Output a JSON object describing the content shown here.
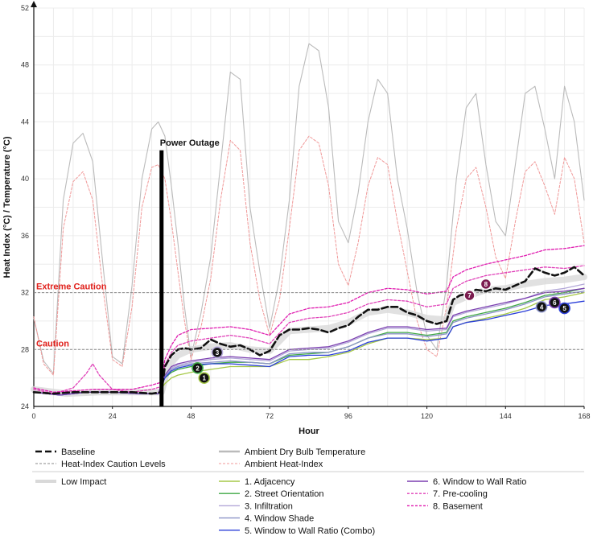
{
  "chart_data": {
    "type": "line",
    "title": "",
    "xlabel": "Hour",
    "ylabel": "Heat Index (°C) / Temperature (°C)",
    "xlim": [
      0,
      168
    ],
    "ylim": [
      24,
      52
    ],
    "xticks": [
      0,
      24,
      48,
      72,
      96,
      120,
      144,
      168
    ],
    "yticks": [
      24,
      28,
      32,
      36,
      40,
      44,
      48,
      52
    ],
    "grid": true,
    "legend": "bottom",
    "reference_lines": [
      {
        "name": "Extreme Caution",
        "y": 32
      },
      {
        "name": "Caution",
        "y": 28
      }
    ],
    "event": {
      "name": "Power Outage",
      "x": 39,
      "ytop": 42
    },
    "series": [
      {
        "name": "Ambient Dry Bulb Temperature",
        "color": "#bbbbbb",
        "dash": "",
        "x": [
          0,
          3,
          6,
          9,
          12,
          15,
          18,
          21,
          24,
          27,
          30,
          33,
          36,
          38,
          40,
          42,
          44,
          46,
          48,
          51,
          54,
          57,
          60,
          63,
          66,
          69,
          72,
          75,
          78,
          81,
          84,
          87,
          90,
          93,
          96,
          99,
          102,
          105,
          108,
          111,
          114,
          117,
          120,
          123,
          126,
          129,
          132,
          135,
          138,
          141,
          144,
          147,
          150,
          153,
          156,
          159,
          162,
          165,
          168
        ],
        "y": [
          30.2,
          27.2,
          26.3,
          38.5,
          42.5,
          43.2,
          41.2,
          34.2,
          27.5,
          27.0,
          32.5,
          40.0,
          43.5,
          44.0,
          43.0,
          39.5,
          35.5,
          31.0,
          27.5,
          30.5,
          34.5,
          41.0,
          47.5,
          47.0,
          38.0,
          33.5,
          29.5,
          33.0,
          38.5,
          46.5,
          49.5,
          49.0,
          45.0,
          37.0,
          35.5,
          39.0,
          44.0,
          47.0,
          46.0,
          40.0,
          36.5,
          32.0,
          29.0,
          28.0,
          32.5,
          40.0,
          45.0,
          46.0,
          41.0,
          37.0,
          36.0,
          41.0,
          46.0,
          46.5,
          43.5,
          40.0,
          46.5,
          44.0,
          38.5
        ]
      },
      {
        "name": "Ambient Heat-Index",
        "color": "#f09898",
        "dash": "3,2",
        "x": [
          0,
          3,
          6,
          9,
          12,
          15,
          18,
          21,
          24,
          27,
          30,
          33,
          36,
          38,
          40,
          42,
          44,
          46,
          48,
          51,
          54,
          57,
          60,
          63,
          66,
          69,
          72,
          75,
          78,
          81,
          84,
          87,
          90,
          93,
          96,
          99,
          102,
          105,
          108,
          111,
          114,
          117,
          120,
          123,
          126,
          129,
          132,
          135,
          138,
          141,
          144,
          147,
          150,
          153,
          156,
          159,
          162,
          165,
          168
        ],
        "y": [
          30.3,
          27.0,
          26.2,
          36.5,
          39.8,
          40.5,
          38.5,
          32.5,
          27.3,
          26.8,
          31.0,
          38.0,
          40.8,
          41.0,
          40.0,
          37.0,
          33.5,
          30.0,
          27.3,
          29.5,
          33.0,
          38.5,
          42.7,
          42.0,
          35.5,
          31.5,
          29.0,
          31.5,
          36.5,
          42.0,
          43.0,
          42.5,
          39.5,
          34.0,
          32.5,
          35.5,
          39.5,
          41.5,
          41.0,
          37.0,
          33.5,
          30.0,
          28.0,
          27.5,
          31.0,
          36.5,
          40.0,
          40.8,
          38.0,
          34.5,
          33.0,
          37.0,
          40.5,
          41.2,
          39.5,
          37.5,
          41.5,
          40.0,
          35.5
        ]
      },
      {
        "name": "Low Impact",
        "color": "#d9d9d9",
        "dash": "",
        "x": [
          0,
          10,
          20,
          30,
          39,
          41,
          44,
          48,
          54,
          60,
          66,
          72,
          78,
          84,
          90,
          96,
          102,
          108,
          114,
          120,
          126,
          128,
          132,
          138,
          144,
          150,
          156,
          162,
          168
        ],
        "y": [
          25.2,
          24.9,
          25.0,
          25.0,
          25.0,
          26.8,
          27.6,
          28.0,
          28.2,
          28.3,
          28.0,
          27.9,
          29.3,
          29.4,
          29.5,
          29.9,
          30.6,
          30.8,
          30.6,
          30.2,
          30.1,
          31.3,
          31.7,
          32.2,
          32.3,
          32.6,
          32.8,
          32.9,
          33.1
        ]
      },
      {
        "name": "Baseline",
        "color": "#111111",
        "dash": "8,4",
        "x": [
          0,
          6,
          12,
          18,
          24,
          30,
          36,
          39,
          40,
          42,
          44,
          46,
          48,
          51,
          54,
          57,
          60,
          63,
          66,
          69,
          72,
          75,
          78,
          81,
          84,
          87,
          90,
          93,
          96,
          99,
          102,
          105,
          108,
          111,
          114,
          117,
          120,
          123,
          126,
          128,
          130,
          132,
          135,
          138,
          141,
          144,
          147,
          150,
          153,
          156,
          159,
          162,
          165,
          168
        ],
        "y": [
          25.0,
          24.9,
          25.0,
          25.0,
          25.0,
          25.0,
          24.9,
          25.0,
          26.8,
          27.6,
          28.0,
          28.1,
          28.0,
          28.1,
          28.7,
          28.4,
          28.2,
          28.3,
          28.0,
          27.6,
          27.9,
          29.0,
          29.4,
          29.4,
          29.5,
          29.4,
          29.2,
          29.5,
          29.7,
          30.3,
          30.8,
          30.8,
          31.0,
          31.0,
          30.6,
          30.4,
          30.0,
          29.8,
          30.0,
          31.5,
          31.8,
          31.9,
          32.2,
          32.1,
          32.3,
          32.2,
          32.5,
          32.8,
          33.7,
          33.4,
          33.2,
          33.4,
          33.8,
          33.2
        ]
      },
      {
        "name": "1. Adjacency",
        "color": "#a6c948",
        "dash": "",
        "x": [
          0,
          8,
          16,
          24,
          32,
          38,
          40,
          42,
          44,
          48,
          54,
          60,
          66,
          72,
          78,
          84,
          90,
          96,
          102,
          108,
          114,
          120,
          126,
          128,
          132,
          138,
          144,
          150,
          156,
          162,
          168
        ],
        "y": [
          25.0,
          24.8,
          25.0,
          25.0,
          24.9,
          24.9,
          25.6,
          26.0,
          26.2,
          26.4,
          26.6,
          26.8,
          26.8,
          26.8,
          27.3,
          27.3,
          27.5,
          27.8,
          28.4,
          28.8,
          28.8,
          28.7,
          28.8,
          29.6,
          29.9,
          30.2,
          30.5,
          30.9,
          31.5,
          31.7,
          32.0
        ]
      },
      {
        "name": "2. Street Orientation",
        "color": "#3fa846",
        "dash": "",
        "x": [
          0,
          8,
          16,
          24,
          32,
          38,
          40,
          42,
          44,
          48,
          54,
          60,
          66,
          72,
          78,
          84,
          90,
          96,
          102,
          108,
          114,
          120,
          126,
          128,
          132,
          138,
          144,
          150,
          156,
          162,
          168
        ],
        "y": [
          25.0,
          24.8,
          25.0,
          25.0,
          24.9,
          24.9,
          26.0,
          26.4,
          26.6,
          26.8,
          27.0,
          27.1,
          27.1,
          27.0,
          27.6,
          27.7,
          27.8,
          28.2,
          28.8,
          29.2,
          29.2,
          29.0,
          29.2,
          30.0,
          30.3,
          30.6,
          30.9,
          31.3,
          31.8,
          32.0,
          32.3
        ]
      },
      {
        "name": "3. Infiltration",
        "color": "#b3a8d8",
        "dash": "",
        "x": [
          0,
          8,
          16,
          24,
          32,
          38,
          40,
          42,
          44,
          48,
          54,
          60,
          66,
          72,
          78,
          84,
          90,
          96,
          102,
          108,
          114,
          120,
          126,
          128,
          132,
          138,
          144,
          150,
          156,
          162,
          168
        ],
        "y": [
          25.0,
          24.8,
          25.0,
          25.0,
          24.9,
          24.9,
          26.2,
          26.7,
          26.9,
          27.1,
          27.3,
          27.4,
          27.3,
          27.2,
          27.9,
          28.0,
          28.1,
          28.5,
          29.1,
          29.5,
          29.5,
          29.3,
          29.4,
          30.3,
          30.6,
          30.9,
          31.2,
          31.6,
          32.1,
          32.3,
          32.6
        ]
      },
      {
        "name": "4. Window Shade",
        "color": "#8d94c8",
        "dash": "",
        "x": [
          0,
          8,
          16,
          24,
          32,
          38,
          40,
          42,
          44,
          48,
          54,
          60,
          66,
          72,
          78,
          84,
          90,
          96,
          102,
          108,
          114,
          120,
          126,
          128,
          132,
          138,
          144,
          150,
          156,
          162,
          168
        ],
        "y": [
          25.0,
          24.8,
          25.0,
          25.0,
          24.9,
          24.9,
          26.1,
          26.6,
          26.8,
          27.0,
          27.1,
          27.2,
          27.1,
          27.0,
          27.7,
          27.8,
          27.8,
          28.2,
          28.8,
          29.1,
          29.1,
          28.9,
          29.1,
          29.9,
          30.2,
          30.5,
          30.8,
          31.2,
          31.7,
          31.9,
          32.1
        ]
      },
      {
        "name": "5. Window to Wall Ratio (Combo)",
        "color": "#2b3fd9",
        "dash": "",
        "x": [
          0,
          8,
          16,
          24,
          32,
          38,
          40,
          42,
          44,
          48,
          54,
          60,
          66,
          72,
          78,
          84,
          90,
          96,
          102,
          108,
          114,
          120,
          126,
          128,
          132,
          138,
          144,
          150,
          156,
          162,
          168
        ],
        "y": [
          25.0,
          24.8,
          25.0,
          25.0,
          24.9,
          24.9,
          26.0,
          26.5,
          26.7,
          26.9,
          27.0,
          27.0,
          26.9,
          26.8,
          27.5,
          27.6,
          27.6,
          27.9,
          28.5,
          28.8,
          28.8,
          28.6,
          28.8,
          29.6,
          29.9,
          30.1,
          30.4,
          30.7,
          31.1,
          31.2,
          31.4
        ]
      },
      {
        "name": "6. Window to Wall Ratio",
        "color": "#7b3fb0",
        "dash": "",
        "x": [
          0,
          8,
          16,
          24,
          32,
          38,
          40,
          42,
          44,
          48,
          54,
          60,
          66,
          72,
          78,
          84,
          90,
          96,
          102,
          108,
          114,
          120,
          126,
          128,
          132,
          138,
          144,
          150,
          156,
          162,
          168
        ],
        "y": [
          25.0,
          24.8,
          25.0,
          25.0,
          24.9,
          24.9,
          26.2,
          26.8,
          27.0,
          27.2,
          27.4,
          27.5,
          27.4,
          27.3,
          28.0,
          28.1,
          28.2,
          28.6,
          29.2,
          29.6,
          29.6,
          29.4,
          29.5,
          30.4,
          30.7,
          31.0,
          31.3,
          31.6,
          32.0,
          32.1,
          32.3
        ]
      },
      {
        "name": "7. Pre-cooling",
        "color": "#e040b8",
        "dash": "3,2",
        "x": [
          0,
          6,
          12,
          16,
          18,
          20,
          24,
          30,
          36,
          39,
          40,
          42,
          44,
          48,
          54,
          60,
          66,
          72,
          78,
          84,
          90,
          96,
          102,
          108,
          114,
          120,
          126,
          128,
          132,
          138,
          144,
          150,
          156,
          162,
          168
        ],
        "y": [
          25.2,
          24.9,
          25.3,
          26.3,
          27.0,
          26.2,
          25.2,
          25.0,
          25.2,
          25.4,
          26.9,
          27.8,
          28.3,
          28.6,
          28.8,
          29.0,
          28.8,
          28.4,
          29.9,
          30.2,
          30.3,
          30.6,
          31.2,
          31.5,
          31.4,
          31.0,
          31.2,
          32.3,
          32.8,
          33.2,
          33.4,
          33.6,
          33.8,
          33.7,
          33.9
        ]
      },
      {
        "name": "8. Basement",
        "color": "#e01cb0",
        "dash": "3,2",
        "x": [
          0,
          6,
          12,
          18,
          24,
          30,
          36,
          39,
          40,
          42,
          44,
          48,
          54,
          60,
          66,
          72,
          78,
          84,
          90,
          96,
          102,
          108,
          114,
          120,
          126,
          128,
          132,
          138,
          144,
          150,
          156,
          162,
          168
        ],
        "y": [
          25.3,
          25.0,
          25.1,
          25.2,
          25.2,
          25.2,
          25.5,
          25.7,
          27.3,
          28.3,
          29.0,
          29.4,
          29.5,
          29.6,
          29.4,
          29.0,
          30.5,
          30.9,
          31.0,
          31.3,
          32.0,
          32.3,
          32.2,
          31.9,
          32.1,
          33.1,
          33.6,
          34.0,
          34.3,
          34.6,
          35.0,
          35.1,
          35.3
        ]
      }
    ],
    "markers": [
      {
        "label": "1",
        "x": 52,
        "y": 26.0,
        "fill": "#111111",
        "ring": "#a6c948"
      },
      {
        "label": "2",
        "x": 50,
        "y": 26.7,
        "fill": "#111111",
        "ring": "#3fa846"
      },
      {
        "label": "3",
        "x": 56,
        "y": 27.8,
        "fill": "#111111",
        "ring": "#b3a8d8"
      },
      {
        "label": "4",
        "x": 155,
        "y": 31.0,
        "fill": "#111111",
        "ring": "#8d94c8"
      },
      {
        "label": "5",
        "x": 162,
        "y": 30.9,
        "fill": "#111111",
        "ring": "#2b3fd9"
      },
      {
        "label": "6",
        "x": 159,
        "y": 31.3,
        "fill": "#111111",
        "ring": "#7b3fb0"
      },
      {
        "label": "7",
        "x": 133,
        "y": 31.8,
        "fill": "#7a1b4e",
        "ring": "#ffffff"
      },
      {
        "label": "8",
        "x": 138,
        "y": 32.6,
        "fill": "#7a1b4e",
        "ring": "#ffffff"
      }
    ]
  },
  "legend": {
    "col1": [
      {
        "label": "Baseline",
        "color": "#111111",
        "dash": "8,4",
        "width": 2.6
      },
      {
        "label": "Heat-Index Caution Levels",
        "color": "#888888",
        "dash": "3,2",
        "width": 1
      }
    ],
    "col2": [
      {
        "label": "Ambient Dry Bulb Temperature",
        "color": "#bbbbbb",
        "dash": "",
        "width": 2.5
      },
      {
        "label": "Ambient Heat-Index",
        "color": "#f09898",
        "dash": "3,2",
        "width": 1
      }
    ],
    "low_impact": {
      "label": "Low Impact",
      "color": "#d9d9d9",
      "dash": "",
      "width": 4
    },
    "col3": [
      {
        "label": "1. Adjacency",
        "color": "#a6c948",
        "dash": "",
        "width": 1.4
      },
      {
        "label": "2. Street Orientation",
        "color": "#3fa846",
        "dash": "",
        "width": 1.4
      },
      {
        "label": "3. Infiltration",
        "color": "#b3a8d8",
        "dash": "",
        "width": 1.4
      },
      {
        "label": "4. Window Shade",
        "color": "#8d94c8",
        "dash": "",
        "width": 1.4
      },
      {
        "label": "5. Window to Wall Ratio (Combo)",
        "color": "#2b3fd9",
        "dash": "",
        "width": 1.4
      }
    ],
    "col4": [
      {
        "label": "6. Window to Wall Ratio",
        "color": "#7b3fb0",
        "dash": "",
        "width": 1.4
      },
      {
        "label": "7. Pre-cooling",
        "color": "#e040b8",
        "dash": "3,2",
        "width": 1.4
      },
      {
        "label": "8. Basement",
        "color": "#e01cb0",
        "dash": "3,2",
        "width": 1.4
      }
    ]
  }
}
